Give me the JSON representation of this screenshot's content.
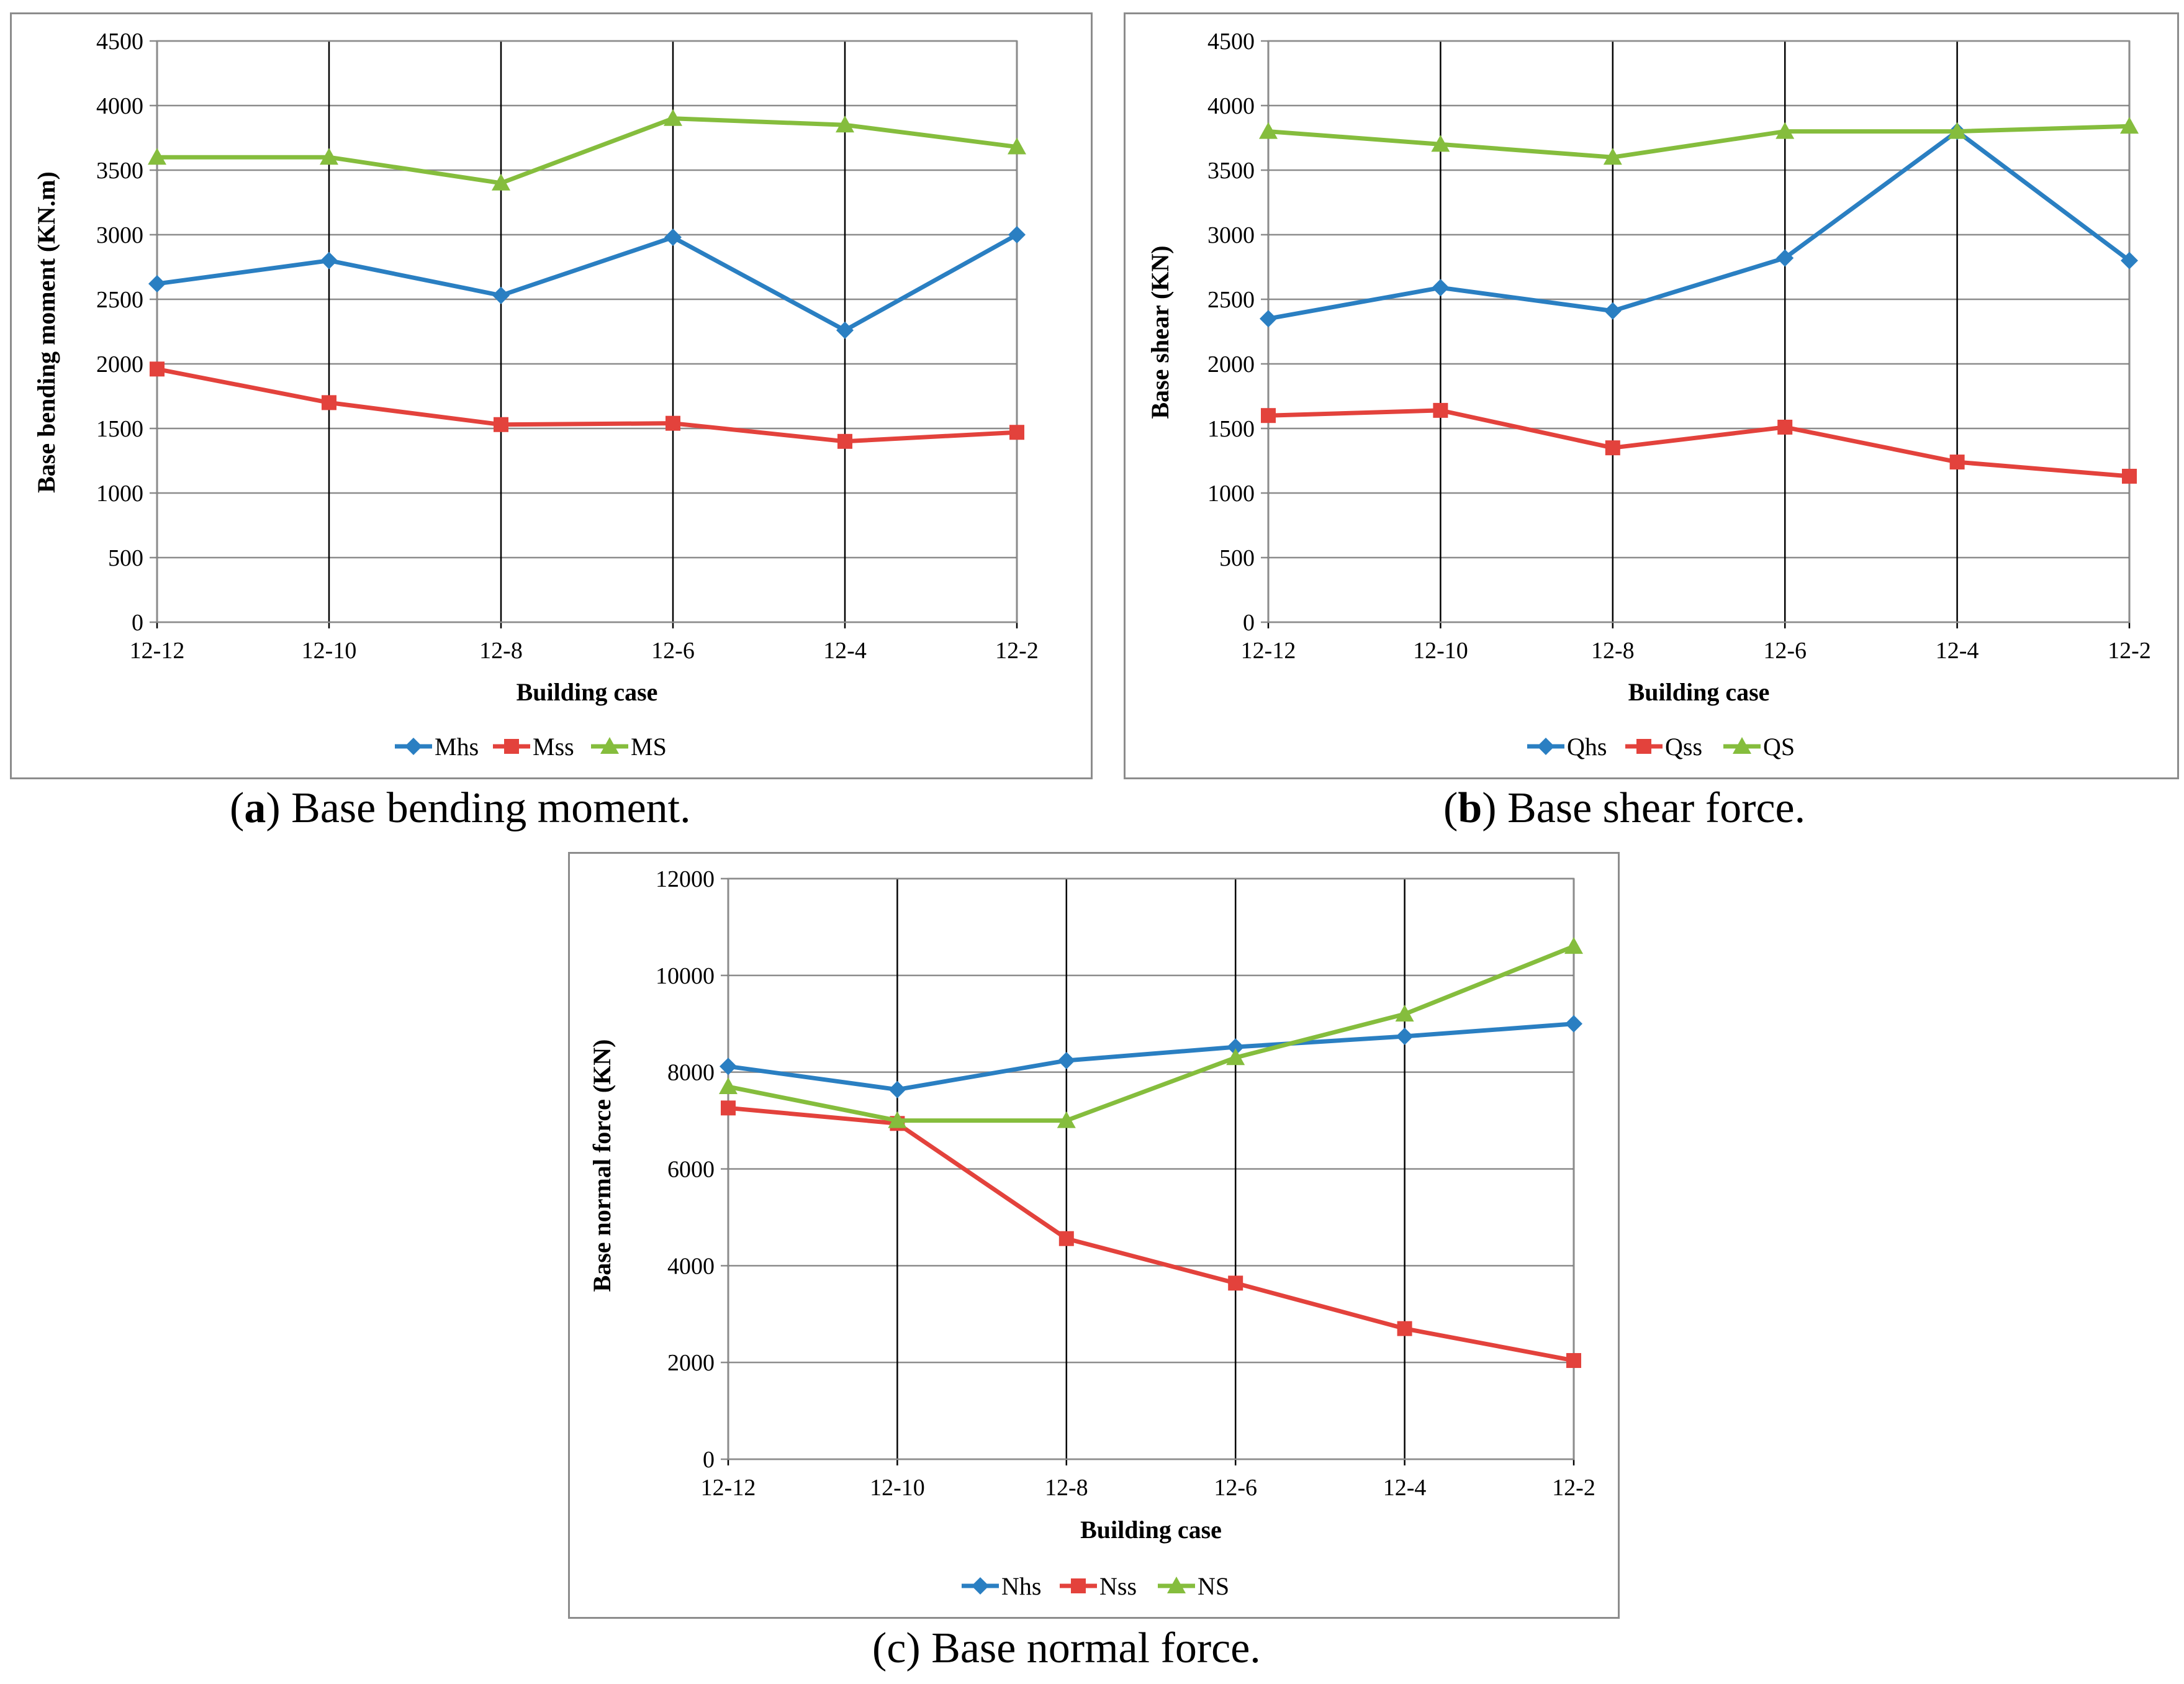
{
  "colors": {
    "blue": "#2a7fc2",
    "red": "#e3423c",
    "green": "#85bd3d"
  },
  "chart_data": [
    {
      "type": "line",
      "ylabel": "Base bending moment (KN.m)",
      "xlabel": "Building case",
      "categories": [
        "12-12",
        "12-10",
        "12-8",
        "12-6",
        "12-4",
        "12-2"
      ],
      "ylim": [
        0,
        4500
      ],
      "yticks": [
        0,
        500,
        1000,
        1500,
        2000,
        2500,
        3000,
        3500,
        4000,
        4500
      ],
      "legend_position": "bottom",
      "series": [
        {
          "name": "Mhs",
          "marker": "diamond",
          "color": "#2a7fc2",
          "values": [
            2620,
            2800,
            2530,
            2980,
            2260,
            3000
          ]
        },
        {
          "name": "Mss",
          "marker": "square",
          "color": "#e3423c",
          "values": [
            1960,
            1700,
            1530,
            1540,
            1400,
            1470
          ]
        },
        {
          "name": "MS",
          "marker": "triangle",
          "color": "#85bd3d",
          "values": [
            3600,
            3600,
            3400,
            3900,
            3850,
            3680
          ]
        }
      ],
      "caption": {
        "label": "a",
        "text": " Base bending moment."
      }
    },
    {
      "type": "line",
      "ylabel": "Base shear (KN)",
      "xlabel": "Building case",
      "categories": [
        "12-12",
        "12-10",
        "12-8",
        "12-6",
        "12-4",
        "12-2"
      ],
      "ylim": [
        0,
        4500
      ],
      "yticks": [
        0,
        500,
        1000,
        1500,
        2000,
        2500,
        3000,
        3500,
        4000,
        4500
      ],
      "legend_position": "bottom",
      "series": [
        {
          "name": "Qhs",
          "marker": "diamond",
          "color": "#2a7fc2",
          "values": [
            2350,
            2590,
            2410,
            2820,
            3800,
            2800
          ]
        },
        {
          "name": "Qss",
          "marker": "square",
          "color": "#e3423c",
          "values": [
            1600,
            1640,
            1350,
            1510,
            1240,
            1130
          ]
        },
        {
          "name": "QS",
          "marker": "triangle",
          "color": "#85bd3d",
          "values": [
            3800,
            3700,
            3600,
            3800,
            3800,
            3840
          ]
        }
      ],
      "caption": {
        "label": "b",
        "text": " Base shear force."
      }
    },
    {
      "type": "line",
      "ylabel": "Base normal force (KN)",
      "xlabel": "Building case",
      "categories": [
        "12-12",
        "12-10",
        "12-8",
        "12-6",
        "12-4",
        "12-2"
      ],
      "ylim": [
        0,
        12000
      ],
      "yticks": [
        0,
        2000,
        4000,
        6000,
        8000,
        10000,
        12000
      ],
      "legend_position": "bottom",
      "series": [
        {
          "name": "Nhs",
          "marker": "diamond",
          "color": "#2a7fc2",
          "values": [
            8120,
            7640,
            8240,
            8520,
            8740,
            9000
          ]
        },
        {
          "name": "Nss",
          "marker": "square",
          "color": "#e3423c",
          "values": [
            7260,
            6940,
            4560,
            3640,
            2700,
            2040
          ]
        },
        {
          "name": "NS",
          "marker": "triangle",
          "color": "#85bd3d",
          "values": [
            7700,
            7000,
            7000,
            8300,
            9200,
            10600
          ]
        }
      ],
      "caption": {
        "label": "c",
        "text": " Base normal force."
      }
    }
  ]
}
